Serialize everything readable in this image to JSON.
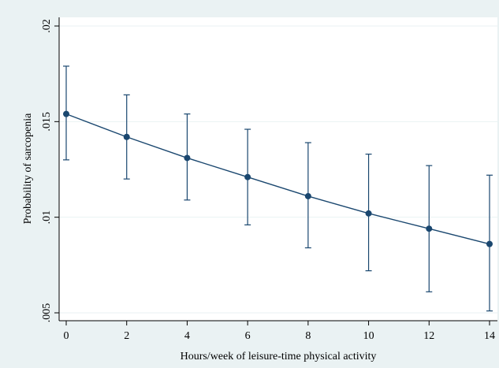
{
  "chart_data": {
    "type": "line",
    "title": "",
    "xlabel": "Hours/week of leisure-time physical activity",
    "ylabel": "Probability of sarcopenia",
    "x": [
      0,
      2,
      4,
      6,
      8,
      10,
      12,
      14
    ],
    "x_tick_labels": [
      "0",
      "2",
      "4",
      "6",
      "8",
      "10",
      "12",
      "14"
    ],
    "xlim": [
      0,
      14
    ],
    "y_ticks": [
      0.005,
      0.01,
      0.015,
      0.02
    ],
    "y_tick_labels": [
      ".005",
      ".01",
      ".015",
      ".02"
    ],
    "ylim": [
      0.005,
      0.02
    ],
    "grid": true,
    "series": [
      {
        "values": [
          0.0154,
          0.0142,
          0.0131,
          0.0121,
          0.0111,
          0.0102,
          0.0094,
          0.0086
        ],
        "ci_lower": [
          0.013,
          0.012,
          0.0109,
          0.0096,
          0.0084,
          0.0072,
          0.0061,
          0.0051
        ],
        "ci_upper": [
          0.0179,
          0.0164,
          0.0154,
          0.0146,
          0.0139,
          0.0133,
          0.0127,
          0.0122
        ]
      }
    ],
    "colors": {
      "series": "#1a476f",
      "background": "#eaf2f3",
      "plot_area": "#ffffff",
      "grid": "#eaf2f3"
    }
  }
}
